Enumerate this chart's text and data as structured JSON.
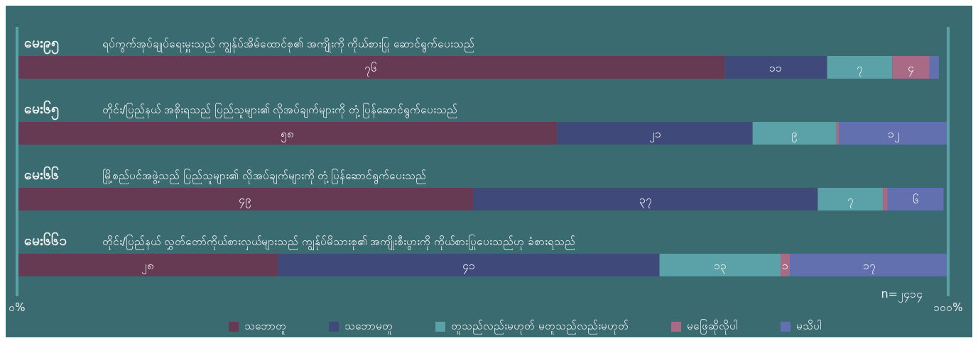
{
  "chart_data": {
    "type": "bar",
    "orientation": "horizontal",
    "stacked": true,
    "categories": [
      "မေး၉၅",
      "မေး၆၅",
      "မေး၆၆",
      "မေး၆၆၁"
    ],
    "annotations": [
      "ရပ်ကွက်အုပ်ချုပ်ရေးမှူးသည် ကျွန်ုပ်အိမ်ထောင်စု၏ အကျိုးကို ကိုယ်စားပြု ဆောင်ရွက်ပေးသည်",
      "တိုင်း/ပြည်နယ် အစိုးရသည် ပြည်သူများ၏ လိုအပ်ချက်များကို တုံ့ပြန်ဆောင်ရွက်ပေးသည်",
      "မြို့စည်ပင်အဖွဲ့သည် ပြည်သူများ၏ လိုအပ်ချက်များကို တုံ့ပြန်ဆောင်ရွက်ပေးသည်",
      "တိုင်း/ပြည်နယ် လွှတ်တော်ကိုယ်စားလှယ်များသည် ကျွန်ုပ်မိသားစု၏ အကျိုးစီးပွားကို ကိုယ်စားပြုပေးသည်ဟု ခံစားရသည်",
      "n=၂၄၁၄"
    ],
    "series": [
      {
        "name": "သဘောတူ",
        "color": "#663a52",
        "values": [
          76,
          58,
          49,
          28
        ],
        "value_labels": [
          "၇၆",
          "၅၈",
          "၄၉",
          "၂၈"
        ]
      },
      {
        "name": "သဘောမတူ",
        "color": "#3f4a7a",
        "values": [
          11,
          21,
          37,
          41
        ],
        "value_labels": [
          "၁၁",
          "၂၁",
          "၃၇",
          "၄၁"
        ]
      },
      {
        "name": "တူသည်လည်းမဟုတ် မတူသည်လည်းမဟုတ်",
        "color": "#5ba1a8",
        "values": [
          7,
          9,
          7,
          13
        ],
        "value_labels": [
          "၇",
          "၉",
          "၇",
          "၁၃"
        ]
      },
      {
        "name": "မဖြေဆိုလိုပါ",
        "color": "#a86a85",
        "values": [
          4,
          0.3,
          0.5,
          1
        ],
        "value_labels": [
          "၄",
          null,
          null,
          "၁"
        ]
      },
      {
        "name": "မသိပါ",
        "color": "#6270b0",
        "values": [
          1,
          12,
          6,
          17
        ],
        "value_labels": [
          null,
          "၁၂",
          "၆",
          "၁၇"
        ]
      }
    ],
    "xlim": [
      0,
      100
    ],
    "xticks": [
      {
        "value": 0,
        "label": "၀%"
      },
      {
        "value": 100,
        "label": "၁၀၀%"
      }
    ],
    "legend": "bottom"
  }
}
